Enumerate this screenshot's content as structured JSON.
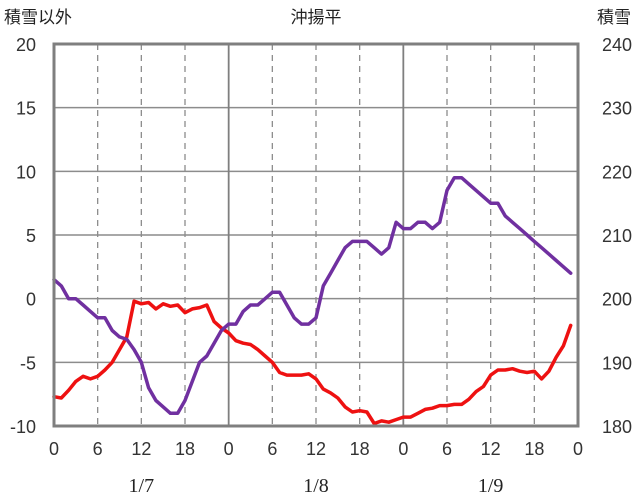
{
  "chart_data": {
    "type": "line",
    "title": "沖揚平",
    "ylabel_left": "積雪以外",
    "ylabel_right": "積雪",
    "x_tick_labels": [
      "0",
      "6",
      "12",
      "18",
      "0",
      "6",
      "12",
      "18",
      "0",
      "6",
      "12",
      "18",
      "0"
    ],
    "date_labels": [
      "1/7",
      "1/8",
      "1/9"
    ],
    "ylim_left": [
      -10,
      20
    ],
    "yticks_left": [
      "20",
      "15",
      "10",
      "5",
      "0",
      "-5",
      "-10"
    ],
    "ylim_right": [
      180,
      240
    ],
    "yticks_right": [
      "240",
      "230",
      "220",
      "210",
      "200",
      "190",
      "180"
    ],
    "xlim_hours": [
      0,
      72
    ],
    "grid": true,
    "series": [
      {
        "color": "#ee1111",
        "axis": "left",
        "x": [
          0,
          1,
          2,
          3,
          4,
          5,
          6,
          7,
          8,
          9,
          10,
          11,
          12,
          13,
          14,
          15,
          16,
          17,
          18,
          19,
          20,
          21,
          22,
          23,
          24,
          25,
          26,
          27,
          28,
          29,
          30,
          31,
          32,
          33,
          34,
          35,
          36,
          37,
          38,
          39,
          40,
          41,
          42,
          43,
          44,
          45,
          46,
          47,
          48,
          49,
          50,
          51,
          52,
          53,
          54,
          55,
          56,
          57,
          58,
          59,
          60,
          61,
          62,
          63,
          64,
          65,
          66,
          67,
          68,
          69,
          70,
          71,
          72
        ],
        "values": [
          -7.7,
          -7.8,
          -7.2,
          -6.5,
          -6.1,
          -6.3,
          -6.1,
          -5.6,
          -5,
          -4,
          -3,
          -0.2,
          -0.4,
          -0.3,
          -0.8,
          -0.4,
          -0.6,
          -0.5,
          -1.1,
          -0.8,
          -0.7,
          -0.5,
          -1.8,
          -2.3,
          -2.7,
          -3.3,
          -3.5,
          -3.6,
          -4,
          -4.5,
          -5,
          -5.8,
          -6,
          -6,
          -6,
          -5.9,
          -6.3,
          -7.1,
          -7.4,
          -7.8,
          -8.5,
          -8.9,
          -8.8,
          -8.9,
          -9.8,
          -9.6,
          -9.7,
          -9.5,
          -9.3,
          -9.3,
          -9,
          -8.7,
          -8.6,
          -8.4,
          -8.4,
          -8.3,
          -8.3,
          -7.9,
          -7.3,
          -6.9,
          -6,
          -5.6,
          -5.6,
          -5.5,
          -5.7,
          -5.8,
          -5.7,
          -6.3,
          -5.7,
          -4.6,
          -3.7,
          -2.1,
          null
        ]
      },
      {
        "color": "#7030a0",
        "axis": "left",
        "x": [
          0,
          1,
          2,
          3,
          4,
          5,
          6,
          7,
          8,
          9,
          10,
          11,
          12,
          13,
          14,
          15,
          16,
          17,
          18,
          19,
          20,
          21,
          22,
          23,
          24,
          25,
          26,
          27,
          28,
          29,
          30,
          31,
          32,
          33,
          34,
          35,
          36,
          37,
          38,
          39,
          40,
          41,
          42,
          43,
          44,
          45,
          46,
          47,
          48,
          49,
          50,
          51,
          52,
          53,
          54,
          55,
          56,
          57,
          58,
          59,
          60,
          61,
          62,
          63,
          64,
          65,
          66,
          67,
          68,
          69,
          70,
          71,
          72
        ],
        "values": [
          1.5,
          1,
          0,
          0,
          -0.5,
          -1,
          -1.5,
          -1.5,
          -2.5,
          -3,
          -3.2,
          -4,
          -5,
          -7,
          -8,
          -8.5,
          -9,
          -9,
          -8,
          -6.5,
          -5,
          -4.5,
          -3.5,
          -2.5,
          -2,
          -2,
          -1,
          -0.5,
          -0.5,
          0,
          0.5,
          0.5,
          -0.5,
          -1.5,
          -2,
          -2,
          -1.5,
          1,
          2,
          3,
          4,
          4.5,
          4.5,
          4.5,
          4,
          3.5,
          4,
          6,
          5.5,
          5.5,
          6,
          6,
          5.5,
          6,
          8.5,
          9.5,
          9.5,
          9,
          8.5,
          8,
          7.5,
          7.5,
          6.5,
          6,
          5.5,
          5,
          4.5,
          4,
          3.5,
          3,
          2.5,
          2,
          null
        ]
      }
    ]
  }
}
